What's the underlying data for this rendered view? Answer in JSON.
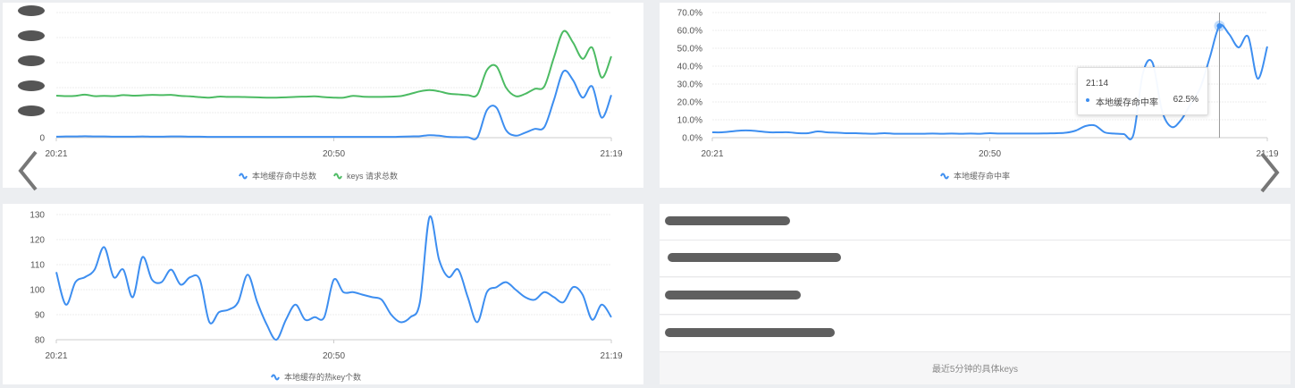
{
  "colors": {
    "blue": "#3d8ef0",
    "green": "#4cbb63",
    "grid": "#eeeeee",
    "axis": "#cccccc",
    "label": "#555555"
  },
  "nav": {
    "prev_icon": "chevron-left-icon",
    "next_icon": "chevron-right-icon"
  },
  "tooltip": {
    "time": "21:14",
    "series": "本地缓存命中率",
    "value": "62.5%"
  },
  "keys_panel": {
    "footer": "最近5分钟的具体keys",
    "row_count": 4
  },
  "chart_data": [
    {
      "type": "line",
      "title": "",
      "xlabel": "",
      "ylabel": "",
      "x_start": "20:21",
      "x_ticks": [
        "20:21",
        "20:50",
        "21:19"
      ],
      "x_tick_minutes": [
        0,
        29,
        58
      ],
      "y_ticks": [
        "0",
        "[redacted]",
        "[redacted]",
        "[redacted]",
        "[redacted]",
        "[redacted]"
      ],
      "ylim": [
        0,
        5
      ],
      "grid": true,
      "legend": "bottom-center",
      "series": [
        {
          "name": "本地缓存命中总数",
          "color": "#3d8ef0",
          "values": [
            0.04,
            0.05,
            0.05,
            0.06,
            0.05,
            0.05,
            0.04,
            0.04,
            0.04,
            0.05,
            0.04,
            0.04,
            0.05,
            0.05,
            0.04,
            0.04,
            0.03,
            0.03,
            0.03,
            0.03,
            0.03,
            0.03,
            0.03,
            0.03,
            0.03,
            0.03,
            0.03,
            0.03,
            0.03,
            0.03,
            0.03,
            0.03,
            0.03,
            0.03,
            0.03,
            0.03,
            0.04,
            0.05,
            0.06,
            0.1,
            0.08,
            0.03,
            0.02,
            0.02,
            0.01,
            1.1,
            1.2,
            0.3,
            0.08,
            0.2,
            0.35,
            0.42,
            1.5,
            2.65,
            2.3,
            1.6,
            2.05,
            0.8,
            1.7
          ]
        },
        {
          "name": "keys 请求总数",
          "color": "#4cbb63",
          "values": [
            1.68,
            1.66,
            1.67,
            1.72,
            1.66,
            1.67,
            1.66,
            1.7,
            1.68,
            1.69,
            1.71,
            1.7,
            1.71,
            1.67,
            1.65,
            1.62,
            1.6,
            1.64,
            1.63,
            1.63,
            1.62,
            1.61,
            1.6,
            1.6,
            1.61,
            1.63,
            1.64,
            1.65,
            1.62,
            1.6,
            1.6,
            1.67,
            1.64,
            1.63,
            1.63,
            1.64,
            1.66,
            1.75,
            1.85,
            1.9,
            1.85,
            1.76,
            1.73,
            1.7,
            1.72,
            2.7,
            2.85,
            2.0,
            1.66,
            1.75,
            1.95,
            2.05,
            3.2,
            4.25,
            3.8,
            3.15,
            3.6,
            2.4,
            3.25
          ]
        }
      ]
    },
    {
      "type": "line",
      "title": "",
      "xlabel": "",
      "ylabel": "",
      "x_start": "20:21",
      "x_ticks": [
        "20:21",
        "20:50",
        "21:19"
      ],
      "x_tick_minutes": [
        0,
        29,
        58
      ],
      "y_ticks": [
        "0.0%",
        "10.0%",
        "20.0%",
        "30.0%",
        "40.0%",
        "50.0%",
        "60.0%",
        "70.0%"
      ],
      "ylim": [
        0,
        70
      ],
      "grid": true,
      "legend": "bottom-center",
      "highlight_minute": 53,
      "series": [
        {
          "name": "本地缓存命中率",
          "color": "#3d8ef0",
          "values": [
            3,
            3,
            3.5,
            4,
            4,
            3.5,
            3,
            3,
            3,
            2.5,
            2.5,
            3.5,
            3,
            2.8,
            2.5,
            2.5,
            2.3,
            2.2,
            2.5,
            2.2,
            2.2,
            2.2,
            2.2,
            2.3,
            2.2,
            2.3,
            2.2,
            2.3,
            2.2,
            2.5,
            2.3,
            2.3,
            2.3,
            2.3,
            2.3,
            2.4,
            2.5,
            2.8,
            4,
            6.5,
            6.8,
            3,
            2.3,
            2,
            1.5,
            36,
            42,
            15,
            6,
            10,
            19,
            28,
            45,
            62.5,
            58,
            50.5,
            56.5,
            33,
            51
          ]
        }
      ]
    },
    {
      "type": "line",
      "title": "",
      "xlabel": "",
      "ylabel": "",
      "x_start": "20:21",
      "x_ticks": [
        "20:21",
        "20:50",
        "21:19"
      ],
      "x_tick_minutes": [
        0,
        29,
        58
      ],
      "y_ticks": [
        "80",
        "90",
        "100",
        "110",
        "120",
        "130"
      ],
      "ylim": [
        80,
        130
      ],
      "grid": true,
      "legend": "bottom-center",
      "series": [
        {
          "name": "本地缓存的热key个数",
          "color": "#3d8ef0",
          "values": [
            107,
            94,
            103,
            105,
            108,
            117,
            105,
            108,
            97,
            113,
            104,
            103,
            108,
            102,
            105,
            104,
            87,
            91,
            92,
            95,
            106,
            95,
            86,
            80,
            88,
            94,
            88,
            89,
            89,
            104,
            99,
            99,
            98,
            97,
            96,
            90,
            87,
            89,
            95,
            129,
            112,
            105,
            108,
            97,
            87,
            99,
            101,
            103,
            100,
            97,
            96,
            99,
            97,
            95,
            101,
            98,
            88,
            94,
            89
          ]
        }
      ]
    }
  ]
}
